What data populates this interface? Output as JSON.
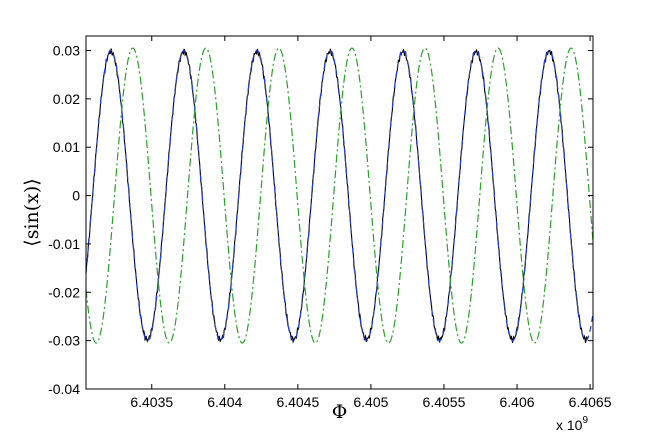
{
  "chart_data": {
    "type": "line",
    "title": "",
    "xlabel": "Φ",
    "ylabel": "⟨sin(x)⟩",
    "x_exponent_label": "x 10",
    "x_exponent_power": "9",
    "xlim": [
      6.40305,
      6.40652
    ],
    "ylim": [
      -0.04,
      0.033
    ],
    "x_ticks": [
      6.4035,
      6.404,
      6.4045,
      6.405,
      6.4055,
      6.406,
      6.4065
    ],
    "x_tick_labels": [
      "6.4035",
      "6.404",
      "6.4045",
      "6.405",
      "6.4055",
      "6.406",
      "6.4065"
    ],
    "y_ticks": [
      -0.04,
      -0.03,
      -0.02,
      -0.01,
      0,
      0.01,
      0.02,
      0.03
    ],
    "y_tick_labels": [
      "-0.04",
      "-0.03",
      "-0.02",
      "-0.01",
      "0",
      "0.01",
      "0.02",
      "0.03"
    ],
    "grid": false,
    "legend": "none",
    "series": [
      {
        "style": "solid",
        "color": "#000000",
        "amplitude": 0.0298,
        "period": 0.0005,
        "first_peak_x": 6.40322,
        "x_range": [
          6.40305,
          6.40648
        ]
      },
      {
        "style": "dashed",
        "color": "#1f3fd6",
        "amplitude": 0.03,
        "period": 0.0005,
        "first_peak_x": 6.40322,
        "x_range": [
          6.40305,
          6.40652
        ]
      },
      {
        "style": "dash-dot",
        "color": "#2ca02c",
        "amplitude": 0.0305,
        "period": 0.0005,
        "first_peak_x": 6.40337,
        "x_range": [
          6.40305,
          6.40652
        ]
      }
    ]
  }
}
